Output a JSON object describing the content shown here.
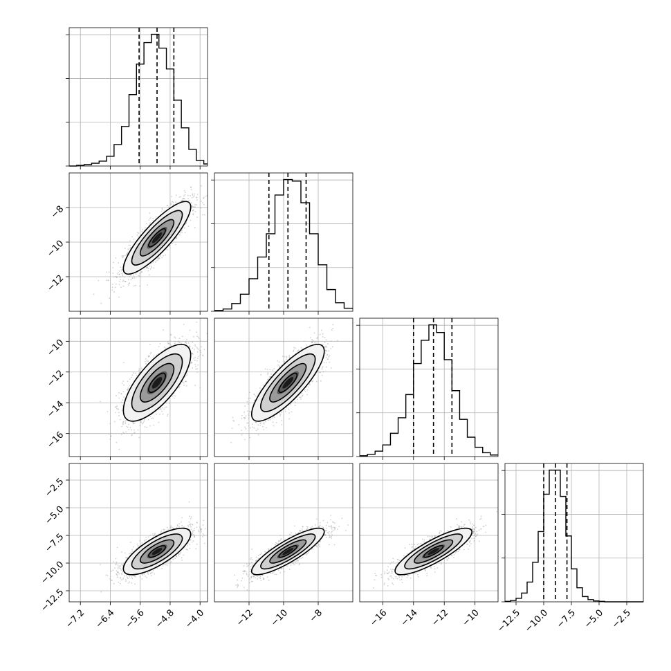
{
  "chart_data": {
    "type": "corner",
    "title": "",
    "n_params": 4,
    "styling": {
      "hist_color": "#000000",
      "quantile_line_color": "#000000",
      "grid_color": "#b0b0b0",
      "sample_color": "#aaaaaa",
      "density_dark": "#000000",
      "density_light": "#ffffff",
      "grid": true
    },
    "params": [
      {
        "label": "",
        "range": [
          -7.5,
          -3.8
        ],
        "ticks": [
          -7.2,
          -6.4,
          -5.6,
          -4.8,
          -4.0
        ],
        "tick_labels": [
          "−7.2",
          "−6.4",
          "−5.6",
          "−4.8",
          "−4.0"
        ],
        "quantiles": [
          -5.63,
          -5.15,
          -4.7
        ],
        "hist": {
          "edges": [
            -7.5,
            -7.3,
            -7.1,
            -6.9,
            -6.7,
            -6.5,
            -6.3,
            -6.1,
            -5.9,
            -5.7,
            -5.5,
            -5.3,
            -5.1,
            -4.9,
            -4.7,
            -4.5,
            -4.3,
            -4.1,
            -3.9,
            -3.8
          ],
          "counts": [
            0,
            1,
            2,
            4,
            7,
            14,
            31,
            57,
            103,
            147,
            178,
            190,
            170,
            140,
            95,
            55,
            24,
            8,
            3
          ]
        }
      },
      {
        "label": "",
        "range": [
          -14.0,
          -6.0
        ],
        "ticks": [
          -12,
          -10,
          -8
        ],
        "tick_labels": [
          "−12",
          "−10",
          "−8"
        ],
        "quantiles": [
          -10.85,
          -9.75,
          -8.7
        ],
        "hist": {
          "edges": [
            -14.0,
            -13.5,
            -13.0,
            -12.5,
            -12.0,
            -11.5,
            -11.0,
            -10.5,
            -10.0,
            -9.5,
            -9.0,
            -8.5,
            -8.0,
            -7.5,
            -7.0,
            -6.5,
            -6.0
          ],
          "counts": [
            1,
            3,
            10,
            22,
            42,
            70,
            100,
            150,
            170,
            168,
            140,
            100,
            60,
            28,
            11,
            4
          ]
        }
      },
      {
        "label": "",
        "range": [
          -17.5,
          -8.5
        ],
        "ticks": [
          -16,
          -14,
          -12,
          -10
        ],
        "tick_labels": [
          "−16",
          "−14",
          "−12",
          "−10"
        ],
        "quantiles": [
          -14.0,
          -12.7,
          -11.5
        ],
        "hist": {
          "edges": [
            -17.5,
            -17.0,
            -16.5,
            -16.0,
            -15.5,
            -15.0,
            -14.5,
            -14.0,
            -13.5,
            -13.0,
            -12.5,
            -12.0,
            -11.5,
            -11.0,
            -10.5,
            -10.0,
            -9.5,
            -9.0,
            -8.5
          ],
          "counts": [
            1,
            3,
            7,
            15,
            30,
            50,
            80,
            120,
            150,
            170,
            160,
            125,
            85,
            48,
            25,
            12,
            5,
            2
          ]
        }
      },
      {
        "label": "",
        "range": [
          -13.5,
          -1.0
        ],
        "ticks": [
          -12.5,
          -10.0,
          -7.5,
          -5.0,
          -2.5
        ],
        "tick_labels": [
          "−12.5",
          "−10.0",
          "−7.5",
          "−5.0",
          "−2.5"
        ],
        "quantiles": [
          -10.0,
          -8.95,
          -7.9
        ],
        "hist": {
          "edges": [
            -13.5,
            -13.0,
            -12.5,
            -12.0,
            -11.5,
            -11.0,
            -10.5,
            -10.0,
            -9.5,
            -9.0,
            -8.5,
            -8.0,
            -7.5,
            -7.0,
            -6.5,
            -6.0,
            -5.5,
            -5.0,
            -4.5,
            -4.0,
            -3.5,
            -3.0,
            -2.5,
            -2.0,
            -1.5,
            -1.0
          ],
          "counts": [
            1,
            3,
            8,
            20,
            45,
            90,
            160,
            245,
            300,
            300,
            240,
            150,
            75,
            32,
            12,
            5,
            2,
            1,
            0,
            0,
            0,
            0,
            0,
            0,
            0
          ]
        }
      }
    ],
    "y_tick_labels": {
      "1": [
        "−12",
        "−10",
        "−8"
      ],
      "2": [
        "−16",
        "−14",
        "−12",
        "−10"
      ],
      "3": [
        "−12.5",
        "−10.0",
        "−7.5",
        "−5.0",
        "−2.5"
      ]
    },
    "pairs": [
      {
        "x": 0,
        "y": 1,
        "mean": [
          -5.15,
          -9.75
        ],
        "sd": [
          0.45,
          1.05
        ],
        "corr": 0.85
      },
      {
        "x": 0,
        "y": 2,
        "mean": [
          -5.15,
          -12.7
        ],
        "sd": [
          0.45,
          1.25
        ],
        "corr": 0.72
      },
      {
        "x": 1,
        "y": 2,
        "mean": [
          -9.75,
          -12.7
        ],
        "sd": [
          1.05,
          1.25
        ],
        "corr": 0.82
      },
      {
        "x": 0,
        "y": 3,
        "mean": [
          -5.15,
          -8.95
        ],
        "sd": [
          0.45,
          1.05
        ],
        "corr": 0.75
      },
      {
        "x": 1,
        "y": 3,
        "mean": [
          -9.75,
          -8.95
        ],
        "sd": [
          1.05,
          1.05
        ],
        "corr": 0.85
      },
      {
        "x": 2,
        "y": 3,
        "mean": [
          -12.7,
          -8.95
        ],
        "sd": [
          1.25,
          1.05
        ],
        "corr": 0.84
      }
    ]
  }
}
